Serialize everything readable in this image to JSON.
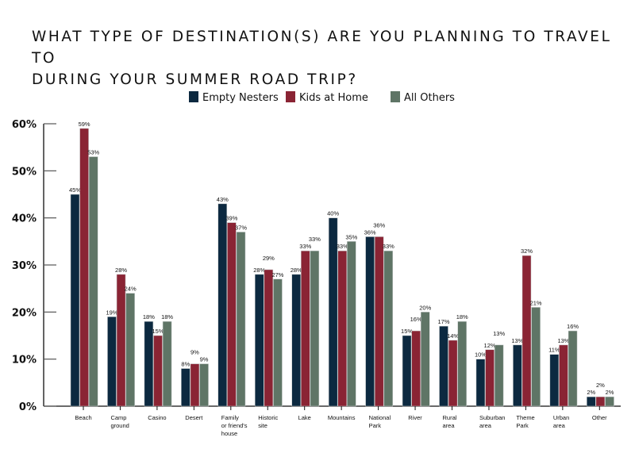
{
  "chart_data": {
    "type": "bar",
    "title_lines": [
      "WHAT TYPE OF DESTINATION(S) ARE YOU PLANNING TO TRAVEL TO",
      "DURING YOUR SUMMER ROAD TRIP?"
    ],
    "xlabel": "",
    "ylabel": "",
    "ylim": [
      0,
      60
    ],
    "yticks": [
      "0%",
      "10%",
      "20%",
      "30%",
      "40%",
      "50%",
      "60%"
    ],
    "grid": false,
    "legend_position": "top",
    "categories": [
      [
        "Beach"
      ],
      [
        "Camp",
        "ground"
      ],
      [
        "Casino"
      ],
      [
        "Desert"
      ],
      [
        "Family",
        "or friend's",
        "house"
      ],
      [
        "Historic",
        "site"
      ],
      [
        "Lake"
      ],
      [
        "Mountains"
      ],
      [
        "National",
        "Park"
      ],
      [
        "River"
      ],
      [
        "Rural",
        "area"
      ],
      [
        "Suburban",
        "area"
      ],
      [
        "Theme",
        "Park"
      ],
      [
        "Urban",
        "area"
      ],
      [
        "Other"
      ]
    ],
    "series": [
      {
        "name": "Empty Nesters",
        "color": "#0c2940",
        "values": [
          45,
          19,
          18,
          8,
          43,
          28,
          28,
          40,
          36,
          15,
          17,
          10,
          13,
          11,
          2
        ]
      },
      {
        "name": "Kids at Home",
        "color": "#8a2434",
        "values": [
          59,
          28,
          15,
          9,
          39,
          29,
          33,
          33,
          36,
          16,
          14,
          12,
          32,
          13,
          2
        ]
      },
      {
        "name": "All Others",
        "color": "#5f7566",
        "values": [
          53,
          24,
          18,
          9,
          37,
          27,
          33,
          35,
          33,
          20,
          18,
          13,
          21,
          16,
          2
        ]
      }
    ],
    "value_suffix": "%"
  }
}
